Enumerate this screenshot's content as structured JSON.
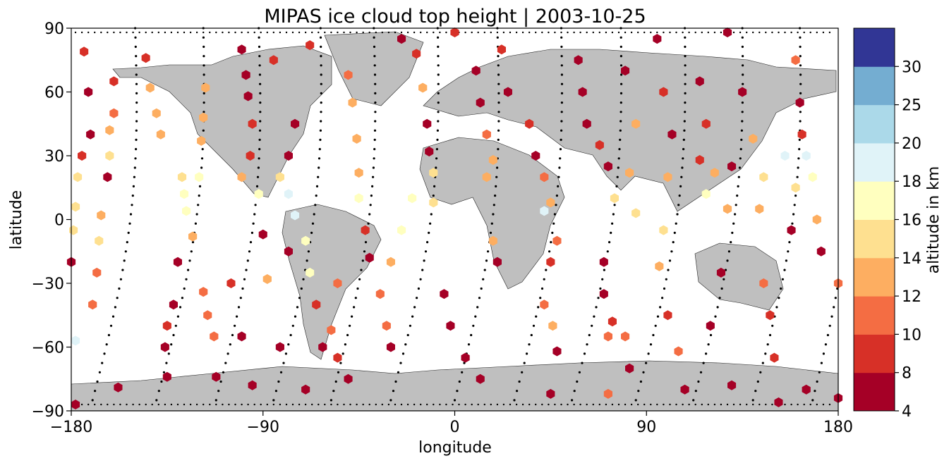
{
  "chart_data": {
    "type": "scatter",
    "title": "MIPAS ice cloud top height | 2003-10-25",
    "xlabel": "longitude",
    "ylabel": "latitude",
    "xlim": [
      -180,
      180
    ],
    "ylim": [
      -90,
      90
    ],
    "x_ticks": [
      -180,
      -90,
      0,
      90,
      180
    ],
    "y_ticks": [
      -90,
      -60,
      -30,
      0,
      30,
      60,
      90
    ],
    "x_tick_labels": [
      "−180",
      "−90",
      "0",
      "90",
      "180"
    ],
    "y_tick_labels": [
      "−90",
      "−60",
      "−30",
      "0",
      "30",
      "60",
      "90"
    ],
    "grid": false,
    "background": "world map, gray land (#bfbfbf)",
    "colorbar": {
      "label": "altitude in km",
      "boundaries": [
        4,
        8,
        10,
        12,
        14,
        16,
        18,
        20,
        25,
        30
      ],
      "tick_labels": [
        "4",
        "8",
        "10",
        "12",
        "14",
        "16",
        "18",
        "20",
        "25",
        "30"
      ],
      "colors": [
        "#a50026",
        "#d73027",
        "#f46d43",
        "#fdae61",
        "#fee090",
        "#ffffbf",
        "#e0f3f8",
        "#abd9e9",
        "#74add1",
        "#313695"
      ],
      "colors_used": [
        "#a50026",
        "#d73027",
        "#f46d43",
        "#fdae61",
        "#fee090",
        "#e0f3f8",
        "#abd9e9",
        "#74add1",
        "#313695"
      ]
    },
    "series": [
      {
        "marker": "hexagon",
        "description": "cloud detections colored by cloud top altitude (km)",
        "points": [
          {
            "lon": -174,
            "lat": 79,
            "alt": 8
          },
          {
            "lon": -172,
            "lat": 60,
            "alt": 6
          },
          {
            "lon": -171,
            "lat": 40,
            "alt": 6
          },
          {
            "lon": -175,
            "lat": 30,
            "alt": 9
          },
          {
            "lon": -177,
            "lat": 20,
            "alt": 15
          },
          {
            "lon": -178,
            "lat": 6,
            "alt": 15
          },
          {
            "lon": -179,
            "lat": -5,
            "alt": 15
          },
          {
            "lon": -180,
            "lat": -20,
            "alt": 6
          },
          {
            "lon": -178,
            "lat": -57,
            "alt": 19
          },
          {
            "lon": -178,
            "lat": -87,
            "alt": 6
          },
          {
            "lon": -160,
            "lat": 65,
            "alt": 9
          },
          {
            "lon": -160,
            "lat": 50,
            "alt": 11
          },
          {
            "lon": -162,
            "lat": 42,
            "alt": 13
          },
          {
            "lon": -162,
            "lat": 30,
            "alt": 14
          },
          {
            "lon": -163,
            "lat": 20,
            "alt": 6
          },
          {
            "lon": -166,
            "lat": 2,
            "alt": 13
          },
          {
            "lon": -167,
            "lat": -10,
            "alt": 14
          },
          {
            "lon": -168,
            "lat": -25,
            "alt": 11
          },
          {
            "lon": -170,
            "lat": -40,
            "alt": 11
          },
          {
            "lon": -158,
            "lat": -79,
            "alt": 6
          },
          {
            "lon": -145,
            "lat": 76,
            "alt": 9
          },
          {
            "lon": -143,
            "lat": 62,
            "alt": 13
          },
          {
            "lon": -140,
            "lat": 50,
            "alt": 13
          },
          {
            "lon": -138,
            "lat": 40,
            "alt": 13
          },
          {
            "lon": -128,
            "lat": 20,
            "alt": 14
          },
          {
            "lon": -127,
            "lat": 12,
            "alt": 17
          },
          {
            "lon": -126,
            "lat": 4,
            "alt": 17
          },
          {
            "lon": -123,
            "lat": -8,
            "alt": 13
          },
          {
            "lon": -130,
            "lat": -20,
            "alt": 6
          },
          {
            "lon": -132,
            "lat": -40,
            "alt": 6
          },
          {
            "lon": -135,
            "lat": -50,
            "alt": 8
          },
          {
            "lon": -136,
            "lat": -60,
            "alt": 6
          },
          {
            "lon": -135,
            "lat": -74,
            "alt": 6
          },
          {
            "lon": -117,
            "lat": 62,
            "alt": 13
          },
          {
            "lon": -118,
            "lat": 48,
            "alt": 13
          },
          {
            "lon": -119,
            "lat": 37,
            "alt": 13
          },
          {
            "lon": -120,
            "lat": 20,
            "alt": 17
          },
          {
            "lon": -118,
            "lat": -34,
            "alt": 11
          },
          {
            "lon": -116,
            "lat": -45,
            "alt": 11
          },
          {
            "lon": -113,
            "lat": -55,
            "alt": 11
          },
          {
            "lon": -112,
            "lat": -74,
            "alt": 6
          },
          {
            "lon": -100,
            "lat": 80,
            "alt": 6
          },
          {
            "lon": -98,
            "lat": 68,
            "alt": 6
          },
          {
            "lon": -97,
            "lat": 58,
            "alt": 6
          },
          {
            "lon": -95,
            "lat": 45,
            "alt": 8
          },
          {
            "lon": -96,
            "lat": 30,
            "alt": 9
          },
          {
            "lon": -100,
            "lat": 20,
            "alt": 13
          },
          {
            "lon": -105,
            "lat": -30,
            "alt": 9
          },
          {
            "lon": -100,
            "lat": -55,
            "alt": 6
          },
          {
            "lon": -95,
            "lat": -78,
            "alt": 6
          },
          {
            "lon": -92,
            "lat": 12,
            "alt": 17
          },
          {
            "lon": -90,
            "lat": -7,
            "alt": 6
          },
          {
            "lon": -88,
            "lat": -28,
            "alt": 13
          },
          {
            "lon": -82,
            "lat": -60,
            "alt": 6
          },
          {
            "lon": -85,
            "lat": 75,
            "alt": 9
          },
          {
            "lon": -75,
            "lat": 45,
            "alt": 6
          },
          {
            "lon": -78,
            "lat": 30,
            "alt": 6
          },
          {
            "lon": -82,
            "lat": 20,
            "alt": 15
          },
          {
            "lon": -78,
            "lat": 12,
            "alt": 19
          },
          {
            "lon": -75,
            "lat": 2,
            "alt": 19
          },
          {
            "lon": -78,
            "lat": -15,
            "alt": 6
          },
          {
            "lon": -70,
            "lat": -10,
            "alt": 17
          },
          {
            "lon": -68,
            "lat": -25,
            "alt": 17
          },
          {
            "lon": -65,
            "lat": -40,
            "alt": 8
          },
          {
            "lon": -62,
            "lat": -60,
            "alt": 6
          },
          {
            "lon": -70,
            "lat": -80,
            "alt": 6
          },
          {
            "lon": -68,
            "lat": 82,
            "alt": 8
          },
          {
            "lon": -50,
            "lat": 68,
            "alt": 11
          },
          {
            "lon": -48,
            "lat": 55,
            "alt": 13
          },
          {
            "lon": -46,
            "lat": 38,
            "alt": 13
          },
          {
            "lon": -45,
            "lat": 22,
            "alt": 13
          },
          {
            "lon": -45,
            "lat": 10,
            "alt": 17
          },
          {
            "lon": -42,
            "lat": -5,
            "alt": 9
          },
          {
            "lon": -40,
            "lat": -18,
            "alt": 6
          },
          {
            "lon": -55,
            "lat": -30,
            "alt": 11
          },
          {
            "lon": -58,
            "lat": -52,
            "alt": 11
          },
          {
            "lon": -55,
            "lat": -65,
            "alt": 9
          },
          {
            "lon": -50,
            "lat": -75,
            "alt": 6
          },
          {
            "lon": -35,
            "lat": -35,
            "alt": 11
          },
          {
            "lon": -32,
            "lat": -50,
            "alt": 11
          },
          {
            "lon": -30,
            "lat": -60,
            "alt": 6
          },
          {
            "lon": -25,
            "lat": 85,
            "alt": 6
          },
          {
            "lon": -18,
            "lat": 78,
            "alt": 9
          },
          {
            "lon": -15,
            "lat": 62,
            "alt": 13
          },
          {
            "lon": -13,
            "lat": 45,
            "alt": 6
          },
          {
            "lon": -12,
            "lat": 32,
            "alt": 6
          },
          {
            "lon": -10,
            "lat": 22,
            "alt": 15
          },
          {
            "lon": -20,
            "lat": 10,
            "alt": 17
          },
          {
            "lon": -25,
            "lat": -5,
            "alt": 17
          },
          {
            "lon": -30,
            "lat": -20,
            "alt": 13
          },
          {
            "lon": 0,
            "lat": 88,
            "alt": 8
          },
          {
            "lon": 10,
            "lat": 70,
            "alt": 6
          },
          {
            "lon": 12,
            "lat": 55,
            "alt": 6
          },
          {
            "lon": 15,
            "lat": 40,
            "alt": 11
          },
          {
            "lon": 18,
            "lat": 28,
            "alt": 13
          },
          {
            "lon": 15,
            "lat": 20,
            "alt": 13
          },
          {
            "lon": -10,
            "lat": 8,
            "alt": 15
          },
          {
            "lon": 18,
            "lat": -10,
            "alt": 13
          },
          {
            "lon": 20,
            "lat": -20,
            "alt": 6
          },
          {
            "lon": -5,
            "lat": -35,
            "alt": 6
          },
          {
            "lon": -2,
            "lat": -50,
            "alt": 6
          },
          {
            "lon": 5,
            "lat": -65,
            "alt": 6
          },
          {
            "lon": 12,
            "lat": -75,
            "alt": 6
          },
          {
            "lon": 22,
            "lat": 80,
            "alt": 8
          },
          {
            "lon": 25,
            "lat": 60,
            "alt": 6
          },
          {
            "lon": 35,
            "lat": 45,
            "alt": 8
          },
          {
            "lon": 38,
            "lat": 30,
            "alt": 6
          },
          {
            "lon": 42,
            "lat": 20,
            "alt": 11
          },
          {
            "lon": 45,
            "lat": 8,
            "alt": 13
          },
          {
            "lon": 42,
            "lat": 4,
            "alt": 19
          },
          {
            "lon": 48,
            "lat": -10,
            "alt": 11
          },
          {
            "lon": 45,
            "lat": -20,
            "alt": 9
          },
          {
            "lon": 42,
            "lat": -40,
            "alt": 11
          },
          {
            "lon": 46,
            "lat": -50,
            "alt": 13
          },
          {
            "lon": 48,
            "lat": -62,
            "alt": 6
          },
          {
            "lon": 45,
            "lat": -82,
            "alt": 6
          },
          {
            "lon": 58,
            "lat": 75,
            "alt": 6
          },
          {
            "lon": 60,
            "lat": 60,
            "alt": 6
          },
          {
            "lon": 62,
            "lat": 45,
            "alt": 6
          },
          {
            "lon": 68,
            "lat": 35,
            "alt": 9
          },
          {
            "lon": 72,
            "lat": 25,
            "alt": 6
          },
          {
            "lon": 75,
            "lat": 10,
            "alt": 15
          },
          {
            "lon": 70,
            "lat": -20,
            "alt": 6
          },
          {
            "lon": 70,
            "lat": -35,
            "alt": 6
          },
          {
            "lon": 74,
            "lat": -48,
            "alt": 9
          },
          {
            "lon": 72,
            "lat": -55,
            "alt": 11
          },
          {
            "lon": 72,
            "lat": -82,
            "alt": 11
          },
          {
            "lon": 80,
            "lat": 70,
            "alt": 6
          },
          {
            "lon": 85,
            "lat": 45,
            "alt": 13
          },
          {
            "lon": 82,
            "lat": 22,
            "alt": 13
          },
          {
            "lon": 85,
            "lat": 3,
            "alt": 15
          },
          {
            "lon": 80,
            "lat": -55,
            "alt": 11
          },
          {
            "lon": 82,
            "lat": -70,
            "alt": 6
          },
          {
            "lon": 95,
            "lat": 85,
            "alt": 6
          },
          {
            "lon": 98,
            "lat": 60,
            "alt": 9
          },
          {
            "lon": 102,
            "lat": 40,
            "alt": 6
          },
          {
            "lon": 100,
            "lat": 20,
            "alt": 13
          },
          {
            "lon": 98,
            "lat": -5,
            "alt": 15
          },
          {
            "lon": 96,
            "lat": -22,
            "alt": 13
          },
          {
            "lon": 100,
            "lat": -45,
            "alt": 8
          },
          {
            "lon": 105,
            "lat": -62,
            "alt": 11
          },
          {
            "lon": 108,
            "lat": -80,
            "alt": 6
          },
          {
            "lon": 115,
            "lat": 65,
            "alt": 6
          },
          {
            "lon": 118,
            "lat": 45,
            "alt": 8
          },
          {
            "lon": 115,
            "lat": 28,
            "alt": 9
          },
          {
            "lon": 122,
            "lat": 22,
            "alt": 13
          },
          {
            "lon": 118,
            "lat": 12,
            "alt": 17
          },
          {
            "lon": 130,
            "lat": 25,
            "alt": 6
          },
          {
            "lon": 128,
            "lat": 5,
            "alt": 13
          },
          {
            "lon": 125,
            "lat": -25,
            "alt": 6
          },
          {
            "lon": 120,
            "lat": -50,
            "alt": 6
          },
          {
            "lon": 130,
            "lat": -78,
            "alt": 6
          },
          {
            "lon": 128,
            "lat": 88,
            "alt": 6
          },
          {
            "lon": 135,
            "lat": 60,
            "alt": 6
          },
          {
            "lon": 140,
            "lat": 38,
            "alt": 13
          },
          {
            "lon": 145,
            "lat": 20,
            "alt": 15
          },
          {
            "lon": 143,
            "lat": 5,
            "alt": 13
          },
          {
            "lon": 145,
            "lat": -30,
            "alt": 11
          },
          {
            "lon": 148,
            "lat": -45,
            "alt": 9
          },
          {
            "lon": 150,
            "lat": -65,
            "alt": 9
          },
          {
            "lon": 152,
            "lat": -86,
            "alt": 6
          },
          {
            "lon": 155,
            "lat": 30,
            "alt": 19
          },
          {
            "lon": 160,
            "lat": 15,
            "alt": 15
          },
          {
            "lon": 158,
            "lat": -5,
            "alt": 6
          },
          {
            "lon": 160,
            "lat": 75,
            "alt": 11
          },
          {
            "lon": 162,
            "lat": 55,
            "alt": 6
          },
          {
            "lon": 163,
            "lat": 40,
            "alt": 9
          },
          {
            "lon": 165,
            "lat": 30,
            "alt": 19
          },
          {
            "lon": 168,
            "lat": 20,
            "alt": 17
          },
          {
            "lon": 170,
            "lat": 0,
            "alt": 13
          },
          {
            "lon": 172,
            "lat": -15,
            "alt": 6
          },
          {
            "lon": 165,
            "lat": -80,
            "alt": 6
          },
          {
            "lon": 180,
            "lat": -30,
            "alt": 11
          },
          {
            "lon": 180,
            "lat": -84,
            "alt": 6
          }
        ]
      },
      {
        "marker": "dot",
        "description": "satellite orbit track (measurements without cloud), black dots"
      }
    ]
  }
}
